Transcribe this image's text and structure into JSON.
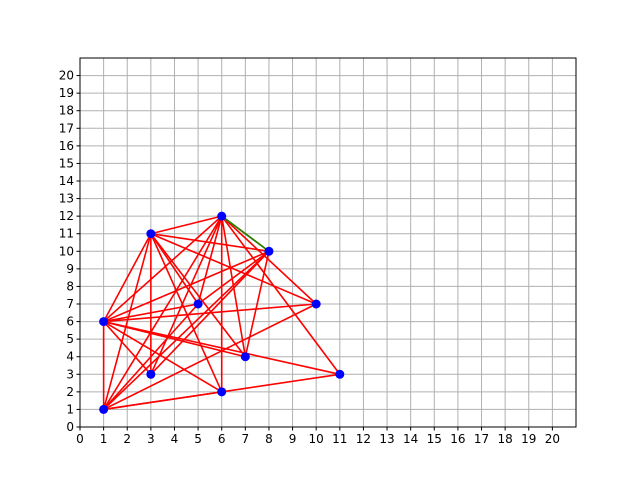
{
  "chart_data": {
    "type": "scatter",
    "title": "",
    "xlabel": "",
    "ylabel": "",
    "xlim": [
      0,
      21
    ],
    "ylim": [
      0,
      21
    ],
    "xticks": [
      0,
      1,
      2,
      3,
      4,
      5,
      6,
      7,
      8,
      9,
      10,
      11,
      12,
      13,
      14,
      15,
      16,
      17,
      18,
      19,
      20
    ],
    "yticks": [
      0,
      1,
      2,
      3,
      4,
      5,
      6,
      7,
      8,
      9,
      10,
      11,
      12,
      13,
      14,
      15,
      16,
      17,
      18,
      19,
      20
    ],
    "grid": true,
    "points": [
      {
        "x": 1,
        "y": 1
      },
      {
        "x": 1,
        "y": 6
      },
      {
        "x": 3,
        "y": 3
      },
      {
        "x": 3,
        "y": 11
      },
      {
        "x": 5,
        "y": 7
      },
      {
        "x": 6,
        "y": 2
      },
      {
        "x": 6,
        "y": 12
      },
      {
        "x": 7,
        "y": 4
      },
      {
        "x": 8,
        "y": 10
      },
      {
        "x": 10,
        "y": 7
      },
      {
        "x": 11,
        "y": 3
      }
    ],
    "edges": [
      [
        0,
        1
      ],
      [
        0,
        3
      ],
      [
        0,
        4
      ],
      [
        0,
        5
      ],
      [
        0,
        6
      ],
      [
        0,
        8
      ],
      [
        0,
        9
      ],
      [
        0,
        10
      ],
      [
        1,
        3
      ],
      [
        1,
        4
      ],
      [
        1,
        6
      ],
      [
        1,
        7
      ],
      [
        1,
        8
      ],
      [
        1,
        9
      ],
      [
        1,
        2
      ],
      [
        1,
        5
      ],
      [
        1,
        10
      ],
      [
        2,
        3
      ],
      [
        2,
        6
      ],
      [
        2,
        8
      ],
      [
        3,
        6
      ],
      [
        3,
        4
      ],
      [
        3,
        7
      ],
      [
        3,
        8
      ],
      [
        3,
        9
      ],
      [
        3,
        5
      ],
      [
        4,
        6
      ],
      [
        4,
        8
      ],
      [
        5,
        6
      ],
      [
        6,
        7
      ],
      [
        6,
        9
      ],
      [
        6,
        10
      ],
      [
        7,
        8
      ]
    ],
    "highlight_edges": [
      [
        6,
        8
      ]
    ],
    "colors": {
      "edge": "#ff0000",
      "highlight_edge": "#2e7d00",
      "point": "#0000ff",
      "grid": "#b0b0b0"
    }
  }
}
